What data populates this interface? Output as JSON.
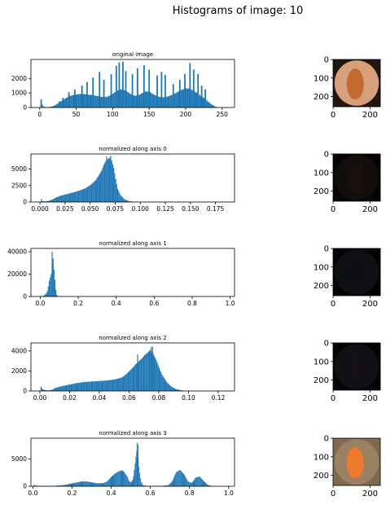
{
  "figure": {
    "title": "Histograms of image: 10"
  },
  "colors": {
    "bar": "#1f77b4",
    "axis": "#000000"
  },
  "chart_data": [
    {
      "type": "bar",
      "title": "original image",
      "xlim": [
        -12,
        267
      ],
      "ylim": [
        0,
        3300
      ],
      "xticks": [
        0,
        50,
        100,
        150,
        200,
        250
      ],
      "xticklabels": [
        "0",
        "50",
        "100",
        "150",
        "200",
        "250"
      ],
      "yticks": [
        0,
        1000,
        2000
      ],
      "yticklabels": [
        "0",
        "1000",
        "2000"
      ],
      "bin_width": 2,
      "envelope": [
        [
          0,
          0
        ],
        [
          1,
          350
        ],
        [
          3,
          120
        ],
        [
          6,
          40
        ],
        [
          10,
          30
        ],
        [
          15,
          60
        ],
        [
          20,
          150
        ],
        [
          25,
          320
        ],
        [
          30,
          480
        ],
        [
          35,
          650
        ],
        [
          40,
          780
        ],
        [
          45,
          850
        ],
        [
          50,
          900
        ],
        [
          55,
          930
        ],
        [
          60,
          920
        ],
        [
          65,
          880
        ],
        [
          70,
          860
        ],
        [
          75,
          820
        ],
        [
          80,
          760
        ],
        [
          85,
          720
        ],
        [
          90,
          720
        ],
        [
          95,
          800
        ],
        [
          100,
          980
        ],
        [
          105,
          1150
        ],
        [
          110,
          1250
        ],
        [
          115,
          1200
        ],
        [
          120,
          1050
        ],
        [
          125,
          880
        ],
        [
          130,
          800
        ],
        [
          135,
          860
        ],
        [
          140,
          1000
        ],
        [
          145,
          1120
        ],
        [
          150,
          1050
        ],
        [
          155,
          900
        ],
        [
          160,
          780
        ],
        [
          165,
          700
        ],
        [
          170,
          700
        ],
        [
          175,
          760
        ],
        [
          180,
          860
        ],
        [
          185,
          980
        ],
        [
          190,
          1120
        ],
        [
          195,
          1250
        ],
        [
          200,
          1320
        ],
        [
          205,
          1280
        ],
        [
          210,
          1150
        ],
        [
          215,
          980
        ],
        [
          220,
          800
        ],
        [
          225,
          620
        ],
        [
          230,
          400
        ],
        [
          235,
          200
        ],
        [
          240,
          50
        ],
        [
          244,
          0
        ]
      ],
      "spikes": [
        [
          1,
          550
        ],
        [
          26,
          420
        ],
        [
          31,
          680
        ],
        [
          39,
          1050
        ],
        [
          47,
          1250
        ],
        [
          57,
          1500
        ],
        [
          64,
          1750
        ],
        [
          72,
          2050
        ],
        [
          81,
          2450
        ],
        [
          87,
          1900
        ],
        [
          97,
          2300
        ],
        [
          104,
          2850
        ],
        [
          108,
          3100
        ],
        [
          113,
          3150
        ],
        [
          117,
          2500
        ],
        [
          126,
          2300
        ],
        [
          133,
          2700
        ],
        [
          142,
          2900
        ],
        [
          149,
          2600
        ],
        [
          160,
          2200
        ],
        [
          166,
          2450
        ],
        [
          171,
          2250
        ],
        [
          182,
          1600
        ],
        [
          191,
          1900
        ],
        [
          198,
          2300
        ],
        [
          205,
          3050
        ],
        [
          210,
          2600
        ],
        [
          216,
          2300
        ],
        [
          221,
          1500
        ],
        [
          226,
          1250
        ]
      ]
    },
    {
      "type": "bar",
      "title": "normalized along axis 0",
      "xlim": [
        -0.009,
        0.194
      ],
      "ylim": [
        0,
        7300
      ],
      "xticks": [
        0,
        0.025,
        0.05,
        0.075,
        0.1,
        0.125,
        0.15,
        0.175
      ],
      "xticklabels": [
        "0.000",
        "0.025",
        "0.050",
        "0.075",
        "0.100",
        "0.125",
        "0.150",
        "0.175"
      ],
      "yticks": [
        0,
        2500,
        5000
      ],
      "yticklabels": [
        "0",
        "2500",
        "5000"
      ],
      "bin_width": 0.001,
      "envelope": [
        [
          0,
          0
        ],
        [
          0.001,
          450
        ],
        [
          0.002,
          150
        ],
        [
          0.004,
          80
        ],
        [
          0.008,
          150
        ],
        [
          0.012,
          400
        ],
        [
          0.016,
          700
        ],
        [
          0.02,
          950
        ],
        [
          0.025,
          1150
        ],
        [
          0.03,
          1350
        ],
        [
          0.035,
          1550
        ],
        [
          0.04,
          1800
        ],
        [
          0.045,
          2100
        ],
        [
          0.05,
          2600
        ],
        [
          0.055,
          3300
        ],
        [
          0.058,
          4000
        ],
        [
          0.061,
          4800
        ],
        [
          0.063,
          5600
        ],
        [
          0.065,
          6200
        ],
        [
          0.067,
          6500
        ],
        [
          0.069,
          6700
        ],
        [
          0.071,
          6300
        ],
        [
          0.073,
          5200
        ],
        [
          0.075,
          3500
        ],
        [
          0.077,
          2000
        ],
        [
          0.08,
          1000
        ],
        [
          0.084,
          400
        ],
        [
          0.088,
          150
        ],
        [
          0.092,
          40
        ],
        [
          0.095,
          0
        ]
      ],
      "spikes": [
        [
          0.066,
          6900
        ],
        [
          0.07,
          7000
        ]
      ]
    },
    {
      "type": "bar",
      "title": "normalized along axis 1",
      "xlim": [
        -0.049,
        1.023
      ],
      "ylim": [
        0,
        43000
      ],
      "xticks": [
        0,
        0.2,
        0.4,
        0.6,
        0.8,
        1.0
      ],
      "xticklabels": [
        "0.0",
        "0.2",
        "0.4",
        "0.6",
        "0.8",
        "1.0"
      ],
      "yticks": [
        0,
        20000,
        40000
      ],
      "yticklabels": [
        "0",
        "20000",
        "40000"
      ],
      "bin_width": 0.005,
      "envelope": [
        [
          0,
          0
        ],
        [
          0.01,
          400
        ],
        [
          0.02,
          1200
        ],
        [
          0.03,
          3000
        ],
        [
          0.035,
          5000
        ],
        [
          0.04,
          9000
        ],
        [
          0.045,
          14000
        ],
        [
          0.05,
          17000
        ],
        [
          0.055,
          20000
        ],
        [
          0.06,
          24000
        ],
        [
          0.065,
          30000
        ],
        [
          0.07,
          24000
        ],
        [
          0.075,
          15000
        ],
        [
          0.08,
          6000
        ],
        [
          0.085,
          1500
        ],
        [
          0.09,
          300
        ],
        [
          0.1,
          0
        ]
      ],
      "spikes": [
        [
          0.06,
          40000
        ],
        [
          0.065,
          34000
        ]
      ]
    },
    {
      "type": "bar",
      "title": "normalized along axis 2",
      "xlim": [
        -0.006,
        0.131
      ],
      "ylim": [
        0,
        4800
      ],
      "xticks": [
        0,
        0.02,
        0.04,
        0.06,
        0.08,
        0.1,
        0.12
      ],
      "xticklabels": [
        "0.00",
        "0.02",
        "0.04",
        "0.06",
        "0.08",
        "0.10",
        "0.12"
      ],
      "yticks": [
        0,
        2000,
        4000
      ],
      "yticklabels": [
        "0",
        "2000",
        "4000"
      ],
      "bin_width": 0.00065,
      "envelope": [
        [
          0,
          0
        ],
        [
          0.0005,
          350
        ],
        [
          0.002,
          120
        ],
        [
          0.005,
          60
        ],
        [
          0.008,
          120
        ],
        [
          0.01,
          300
        ],
        [
          0.015,
          500
        ],
        [
          0.02,
          650
        ],
        [
          0.025,
          800
        ],
        [
          0.03,
          900
        ],
        [
          0.035,
          950
        ],
        [
          0.04,
          1000
        ],
        [
          0.045,
          1050
        ],
        [
          0.05,
          1150
        ],
        [
          0.055,
          1350
        ],
        [
          0.058,
          1700
        ],
        [
          0.062,
          2300
        ],
        [
          0.065,
          2800
        ],
        [
          0.068,
          3200
        ],
        [
          0.07,
          3550
        ],
        [
          0.072,
          3800
        ],
        [
          0.074,
          4100
        ],
        [
          0.076,
          3700
        ],
        [
          0.078,
          3100
        ],
        [
          0.08,
          2300
        ],
        [
          0.082,
          1600
        ],
        [
          0.085,
          900
        ],
        [
          0.088,
          450
        ],
        [
          0.091,
          200
        ],
        [
          0.095,
          60
        ],
        [
          0.098,
          0
        ]
      ],
      "spikes": [
        [
          0.0005,
          420
        ],
        [
          0.0655,
          3650
        ],
        [
          0.0745,
          4350
        ],
        [
          0.0755,
          4450
        ]
      ]
    },
    {
      "type": "bar",
      "title": "normalized along axis 3",
      "xlim": [
        -0.01,
        1.03
      ],
      "ylim": [
        0,
        8800
      ],
      "xticks": [
        0,
        0.2,
        0.4,
        0.6,
        0.8,
        1.0
      ],
      "xticklabels": [
        "0.0",
        "0.2",
        "0.4",
        "0.6",
        "0.8",
        "1.0"
      ],
      "yticks": [
        0,
        5000
      ],
      "yticklabels": [
        "0",
        "5000"
      ],
      "bin_width": 0.004,
      "envelope": [
        [
          0,
          0
        ],
        [
          0.002,
          300
        ],
        [
          0.01,
          120
        ],
        [
          0.05,
          40
        ],
        [
          0.1,
          60
        ],
        [
          0.15,
          200
        ],
        [
          0.2,
          550
        ],
        [
          0.25,
          900
        ],
        [
          0.28,
          850
        ],
        [
          0.3,
          700
        ],
        [
          0.33,
          550
        ],
        [
          0.36,
          600
        ],
        [
          0.38,
          1000
        ],
        [
          0.4,
          1800
        ],
        [
          0.42,
          2400
        ],
        [
          0.44,
          2800
        ],
        [
          0.46,
          2800
        ],
        [
          0.48,
          1800
        ],
        [
          0.49,
          900
        ],
        [
          0.5,
          700
        ],
        [
          0.51,
          1300
        ],
        [
          0.52,
          4200
        ],
        [
          0.53,
          7000
        ],
        [
          0.54,
          3500
        ],
        [
          0.55,
          900
        ],
        [
          0.56,
          200
        ],
        [
          0.58,
          60
        ],
        [
          0.62,
          50
        ],
        [
          0.66,
          80
        ],
        [
          0.69,
          200
        ],
        [
          0.71,
          900
        ],
        [
          0.73,
          2600
        ],
        [
          0.75,
          3000
        ],
        [
          0.77,
          2200
        ],
        [
          0.79,
          900
        ],
        [
          0.81,
          600
        ],
        [
          0.83,
          1600
        ],
        [
          0.85,
          1800
        ],
        [
          0.87,
          1000
        ],
        [
          0.89,
          300
        ],
        [
          0.91,
          60
        ],
        [
          0.93,
          0
        ]
      ],
      "spikes": [
        [
          0.53,
          8000
        ],
        [
          0.535,
          7600
        ],
        [
          0.45,
          2950
        ]
      ]
    }
  ],
  "thumbnails": [
    {
      "xticklabels": [
        "0",
        "200"
      ],
      "yticklabels": [
        "0",
        "100",
        "200"
      ],
      "bg": "#d7a07a",
      "lesion": "#c26a30",
      "corner": "#23150f"
    },
    {
      "xticklabels": [
        "0",
        "200"
      ],
      "yticklabels": [
        "0",
        "100",
        "200"
      ],
      "bg": "#120e0c",
      "lesion": "#1a0f0a",
      "corner": "#050403"
    },
    {
      "xticklabels": [
        "0",
        "200"
      ],
      "yticklabels": [
        "0",
        "100",
        "200"
      ],
      "bg": "#0d1015",
      "lesion": "#0e0e14",
      "corner": "#020203"
    },
    {
      "xticklabels": [
        "0",
        "200"
      ],
      "yticklabels": [
        "0",
        "100",
        "200"
      ],
      "bg": "#0f1117",
      "lesion": "#141016",
      "corner": "#030304"
    },
    {
      "xticklabels": [
        "0",
        "200"
      ],
      "yticklabels": [
        "0",
        "100",
        "200"
      ],
      "bg": "#9c8062",
      "lesion": "#ef7a2f",
      "corner": "#7e6a52"
    }
  ]
}
